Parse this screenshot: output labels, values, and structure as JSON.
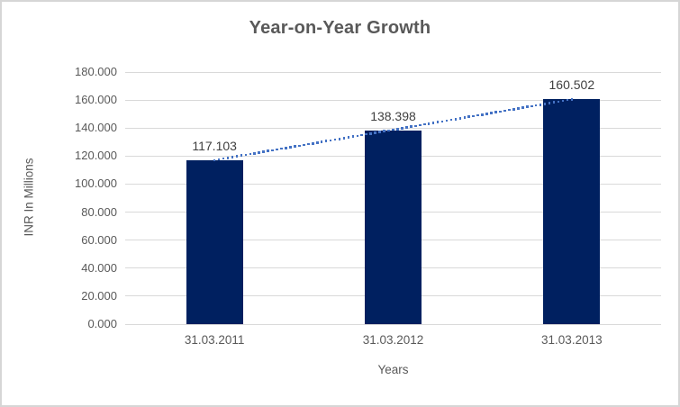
{
  "frame": {
    "background": "#ffffff",
    "border_color": "#d6d6d6"
  },
  "chart_data": {
    "type": "bar",
    "title": "Year-on-Year Growth",
    "xlabel": "Years",
    "ylabel": "INR In Millions",
    "categories": [
      "31.03.2011",
      "31.03.2012",
      "31.03.2013"
    ],
    "values": [
      117.103,
      138.398,
      160.502
    ],
    "data_labels": [
      "117.103",
      "138.398",
      "160.502"
    ],
    "ylim": [
      0,
      180
    ],
    "y_tick_values": [
      0,
      20,
      40,
      60,
      80,
      100,
      120,
      140,
      160,
      180
    ],
    "y_tick_labels": [
      "0.000",
      "20.000",
      "40.000",
      "60.000",
      "80.000",
      "100.000",
      "120.000",
      "140.000",
      "160.000",
      "180.000"
    ],
    "grid": true,
    "legend": "none",
    "bar_color": "#002060",
    "trendline": {
      "type": "linear",
      "style": "dotted",
      "color": "#4472c4"
    },
    "colors": {
      "title": "#595959",
      "axis_text": "#595959",
      "data_label": "#3f3f3f",
      "gridline": "#d9d9d9"
    }
  }
}
